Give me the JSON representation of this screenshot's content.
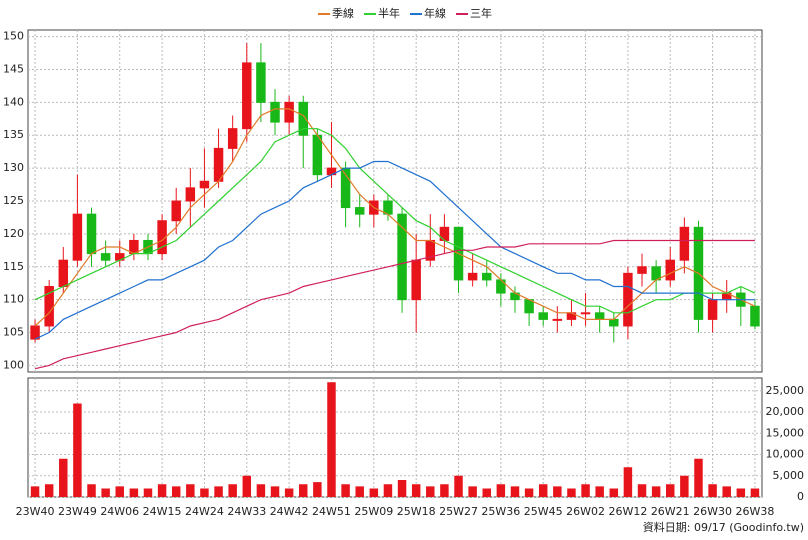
{
  "chart_data": {
    "type": "candlestick",
    "categories": [
      "23W40",
      null,
      null,
      "23W49",
      null,
      null,
      "24W06",
      null,
      null,
      "24W15",
      null,
      null,
      "24W24",
      null,
      null,
      "24W33",
      null,
      null,
      "24W42",
      null,
      null,
      "24W51",
      null,
      null,
      "25W09",
      null,
      null,
      "25W18",
      null,
      null,
      "25W27",
      null,
      null,
      "25W36",
      null,
      null,
      "25W45",
      null,
      null,
      "26W02",
      null,
      null,
      "26W12",
      null,
      null,
      "26W21",
      null,
      null,
      "26W30",
      null,
      null,
      "26W38"
    ],
    "ohlc": [
      [
        104,
        107,
        103.5,
        106
      ],
      [
        106,
        113,
        105,
        112
      ],
      [
        112,
        118,
        111,
        116
      ],
      [
        116,
        129,
        115,
        123
      ],
      [
        123,
        124,
        115,
        117
      ],
      [
        117,
        119,
        115,
        116
      ],
      [
        116,
        119,
        115,
        117
      ],
      [
        117,
        120,
        116,
        119
      ],
      [
        119,
        120,
        116,
        117
      ],
      [
        117,
        123,
        116,
        122
      ],
      [
        122,
        127,
        120,
        125
      ],
      [
        125,
        130,
        121,
        127
      ],
      [
        127,
        133,
        124,
        128
      ],
      [
        128,
        136,
        127,
        133
      ],
      [
        133,
        138,
        131,
        136
      ],
      [
        136,
        149,
        134,
        146
      ],
      [
        146,
        149,
        137,
        140
      ],
      [
        140,
        142,
        135,
        137
      ],
      [
        137,
        141,
        135,
        140
      ],
      [
        140,
        141,
        130,
        135
      ],
      [
        135,
        136,
        128,
        129
      ],
      [
        129,
        137,
        127,
        130
      ],
      [
        130,
        131,
        121,
        124
      ],
      [
        124,
        126,
        121,
        123
      ],
      [
        123,
        126,
        121,
        125
      ],
      [
        125,
        126,
        122,
        123
      ],
      [
        123,
        124,
        108,
        110
      ],
      [
        110,
        120,
        105,
        116
      ],
      [
        116,
        123,
        115,
        119
      ],
      [
        119,
        123,
        117,
        121
      ],
      [
        121,
        121,
        111,
        113
      ],
      [
        113,
        117,
        112,
        114
      ],
      [
        114,
        116,
        112,
        113
      ],
      [
        113,
        114,
        109,
        111
      ],
      [
        111,
        112,
        108,
        110
      ],
      [
        110,
        110,
        106,
        108
      ],
      [
        108,
        109,
        106,
        107
      ],
      [
        107,
        109,
        105,
        107
      ],
      [
        107,
        110,
        106,
        108
      ],
      [
        108,
        111,
        106,
        108
      ],
      [
        108,
        109,
        105,
        107
      ],
      [
        107,
        108,
        103.5,
        106
      ],
      [
        106,
        115,
        104,
        114
      ],
      [
        114,
        117,
        112,
        115
      ],
      [
        115,
        116,
        111,
        113
      ],
      [
        113,
        118,
        112,
        116
      ],
      [
        116,
        122.5,
        114,
        121
      ],
      [
        121,
        122,
        105,
        107
      ],
      [
        107,
        111,
        105,
        110
      ],
      [
        110,
        113,
        108,
        111
      ],
      [
        111,
        112,
        106,
        109
      ],
      [
        109,
        110,
        105.5,
        106
      ]
    ],
    "up_color": "#e8141c",
    "down_color": "#18b818",
    "series": [
      {
        "name": "季線",
        "color": "#e07a28",
        "values": [
          106,
          108,
          111,
          114,
          117,
          118,
          118,
          117,
          118,
          119,
          121,
          124,
          126,
          128,
          131,
          135,
          138,
          139,
          139,
          138,
          135,
          132,
          129,
          126,
          124,
          123,
          121,
          119,
          119,
          118,
          117,
          116,
          115,
          113,
          111,
          110,
          109,
          108,
          108,
          107,
          107,
          107,
          109,
          111,
          113,
          114,
          115,
          114,
          112,
          111,
          110,
          109
        ]
      },
      {
        "name": "半年",
        "color": "#30d030",
        "values": [
          110,
          111,
          112,
          113,
          114,
          115,
          116,
          117,
          117,
          118,
          119,
          121,
          123,
          125,
          127,
          129,
          131,
          134,
          135,
          136,
          136,
          135,
          133,
          130,
          128,
          126,
          124,
          122,
          121,
          119,
          118,
          117,
          116,
          115,
          114,
          113,
          112,
          111,
          110,
          109,
          109,
          108,
          108,
          109,
          110,
          110,
          111,
          111,
          111,
          111,
          112,
          111
        ]
      },
      {
        "name": "年線",
        "color": "#2070d0",
        "values": [
          104,
          105,
          107,
          108,
          109,
          110,
          111,
          112,
          113,
          113,
          114,
          115,
          116,
          118,
          119,
          121,
          123,
          124,
          125,
          127,
          128,
          129,
          130,
          130,
          131,
          131,
          130,
          129,
          128,
          126,
          124,
          122,
          120,
          118,
          117,
          116,
          115,
          114,
          114,
          113,
          113,
          112,
          112,
          111,
          111,
          111,
          111,
          111,
          110,
          110,
          110,
          110
        ]
      },
      {
        "name": "三年",
        "color": "#d0205a",
        "values": [
          99.5,
          100,
          101,
          101.5,
          102,
          102.5,
          103,
          103.5,
          104,
          104.5,
          105,
          106,
          106.5,
          107,
          108,
          109,
          110,
          110.5,
          111,
          112,
          112.5,
          113,
          113.5,
          114,
          114.5,
          115,
          115.5,
          116,
          116.5,
          117,
          117.5,
          117.5,
          118,
          118,
          118,
          118.5,
          118.5,
          118.5,
          118.5,
          118.5,
          118.5,
          119,
          119,
          119,
          119,
          119,
          119,
          119,
          119,
          119,
          119,
          119
        ]
      }
    ],
    "ylim": [
      99,
      151
    ],
    "yticks": [
      100,
      105,
      110,
      115,
      120,
      125,
      130,
      135,
      140,
      145,
      150
    ],
    "grid": true,
    "volume": {
      "color": "#e8141c",
      "values": [
        2500,
        3000,
        9000,
        22000,
        3000,
        2000,
        2500,
        2000,
        2000,
        3000,
        2500,
        3000,
        2000,
        2500,
        3000,
        5000,
        3000,
        2500,
        2000,
        3000,
        3500,
        27000,
        3000,
        2500,
        2000,
        3000,
        4000,
        3000,
        2500,
        3000,
        5000,
        2500,
        2000,
        3000,
        2500,
        2000,
        3000,
        2500,
        2000,
        3000,
        2500,
        2000,
        7000,
        3000,
        2500,
        3000,
        5000,
        9000,
        3000,
        2500,
        2000,
        2000
      ],
      "ylim": [
        0,
        28000
      ],
      "yticks": [
        0,
        {
          "value": 5000,
          "label": "5,000"
        },
        {
          "value": 10000,
          "label": "10,000"
        },
        {
          "value": 15000,
          "label": "15,000"
        },
        {
          "value": 20000,
          "label": "20,000"
        },
        {
          "value": 25000,
          "label": "25,000"
        }
      ]
    },
    "footer": "資料日期: 09/17 (Goodinfo.tw)"
  }
}
